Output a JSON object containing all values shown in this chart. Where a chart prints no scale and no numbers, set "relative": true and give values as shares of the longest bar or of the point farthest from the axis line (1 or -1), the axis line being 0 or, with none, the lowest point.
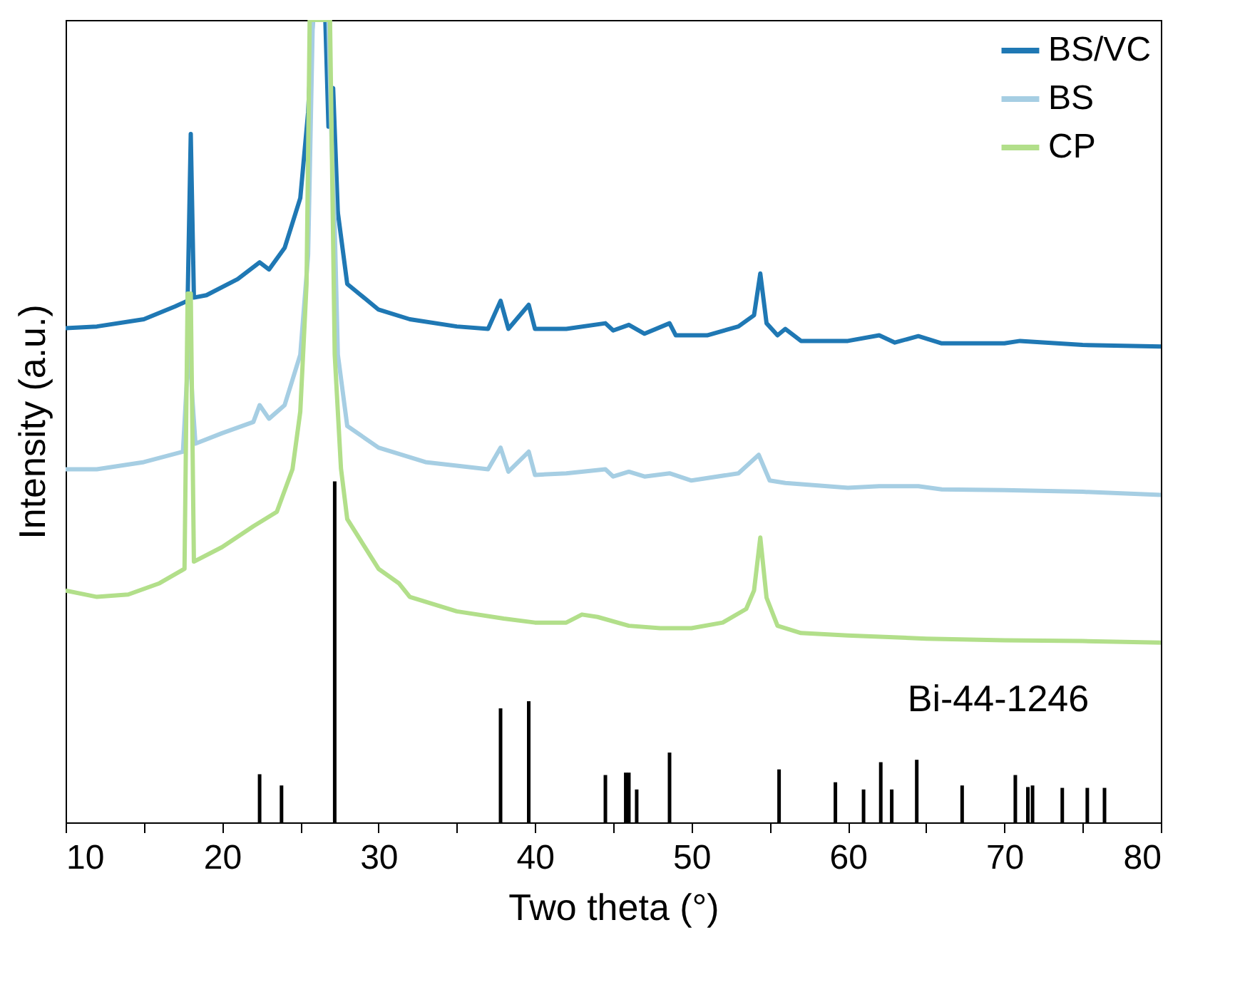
{
  "chart_data": {
    "type": "line",
    "relative": true,
    "xlabel": "Two theta (°)",
    "ylabel": "Intensity (a.u.)",
    "xlim": [
      10,
      80
    ],
    "xticks": [
      10,
      {
        "value": 15,
        "label": null
      },
      20,
      {
        "value": 25,
        "label": null
      },
      30,
      {
        "value": 35,
        "label": null
      },
      40,
      {
        "value": 45,
        "label": null
      },
      50,
      {
        "value": 55,
        "label": null
      },
      60,
      {
        "value": 65,
        "label": null
      },
      70,
      {
        "value": 75,
        "label": null
      },
      80
    ],
    "legend": "top right",
    "grid": false,
    "marker": "none",
    "line_style": "solid",
    "annotations": [
      "Bi-44-1246"
    ],
    "series": [
      {
        "name": "BS/VC",
        "color": "#1f78b4",
        "x": [
          10,
          12,
          15,
          17,
          17.8,
          18.0,
          18.2,
          19,
          21,
          22.4,
          23,
          24,
          25,
          25.5,
          25.8,
          26.3,
          26.6,
          26.8,
          27.0,
          27.1,
          27.4,
          28,
          30,
          32,
          35,
          37,
          37.8,
          38.3,
          39.6,
          40,
          42,
          44.5,
          45,
          46,
          47,
          48.6,
          49,
          51,
          53,
          54,
          54.4,
          54.8,
          55.5,
          56,
          57,
          60,
          62,
          63,
          64.5,
          66,
          70,
          71,
          75,
          80
        ],
        "values": [
          0.616,
          0.618,
          0.627,
          0.643,
          0.65,
          0.858,
          0.654,
          0.657,
          0.677,
          0.698,
          0.689,
          0.716,
          0.778,
          0.885,
          1,
          1,
          1,
          0.867,
          0.911,
          0.915,
          0.76,
          0.671,
          0.639,
          0.627,
          0.618,
          0.615,
          0.65,
          0.615,
          0.645,
          0.615,
          0.615,
          0.622,
          0.613,
          0.62,
          0.609,
          0.622,
          0.607,
          0.607,
          0.618,
          0.632,
          0.684,
          0.622,
          0.607,
          0.615,
          0.6,
          0.6,
          0.607,
          0.598,
          0.606,
          0.597,
          0.597,
          0.6,
          0.595,
          0.593
        ]
      },
      {
        "name": "BS",
        "color": "#a6cee3",
        "x": [
          10,
          12,
          15,
          17.5,
          17.9,
          18.1,
          18.3,
          20,
          22,
          22.4,
          23,
          24,
          25,
          25.5,
          25.8,
          26.8,
          27.0,
          27.2,
          27.4,
          28,
          30,
          33,
          37,
          37.8,
          38.3,
          39.6,
          40,
          42,
          44.5,
          45,
          46,
          47,
          48.6,
          50,
          53,
          54.3,
          55,
          56,
          60,
          62,
          64.5,
          66,
          70,
          75,
          80
        ],
        "values": [
          0.44,
          0.44,
          0.449,
          0.462,
          0.604,
          0.529,
          0.472,
          0.485,
          0.499,
          0.52,
          0.503,
          0.52,
          0.583,
          0.707,
          1,
          1,
          0.849,
          0.742,
          0.583,
          0.494,
          0.467,
          0.449,
          0.44,
          0.467,
          0.437,
          0.462,
          0.433,
          0.435,
          0.44,
          0.431,
          0.437,
          0.431,
          0.435,
          0.426,
          0.435,
          0.458,
          0.426,
          0.423,
          0.417,
          0.419,
          0.419,
          0.415,
          0.414,
          0.412,
          0.408
        ]
      },
      {
        "name": "CP",
        "color": "#b2df8a",
        "x": [
          10,
          12,
          14,
          16,
          17.6,
          17.8,
          18.0,
          18.2,
          20,
          22,
          23.5,
          24.5,
          25,
          25.4,
          25.6,
          26.9,
          27.2,
          27.6,
          28,
          30,
          31.3,
          32,
          35,
          38,
          40,
          42,
          43,
          44,
          46,
          48,
          50,
          52,
          53.5,
          54,
          54.4,
          54.8,
          55.5,
          57,
          60,
          65,
          70,
          75,
          80
        ],
        "values": [
          0.289,
          0.281,
          0.284,
          0.298,
          0.316,
          0.659,
          0.659,
          0.325,
          0.343,
          0.369,
          0.387,
          0.44,
          0.512,
          0.671,
          1,
          1,
          0.583,
          0.441,
          0.378,
          0.316,
          0.298,
          0.281,
          0.263,
          0.254,
          0.249,
          0.249,
          0.259,
          0.256,
          0.245,
          0.242,
          0.242,
          0.249,
          0.266,
          0.289,
          0.355,
          0.28,
          0.245,
          0.236,
          0.233,
          0.229,
          0.227,
          0.226,
          0.224
        ]
      },
      {
        "type": "bar",
        "color": "#000000",
        "x": [
          22.4,
          23.8,
          27.2,
          37.8,
          39.6,
          44.5,
          45.8,
          46.0,
          46.5,
          48.6,
          55.6,
          59.2,
          61.0,
          62.1,
          62.8,
          64.4,
          67.3,
          70.7,
          71.5,
          71.8,
          73.7,
          75.3,
          76.4
        ],
        "values": [
          0.06,
          0.046,
          0.425,
          0.142,
          0.151,
          0.059,
          0.062,
          0.062,
          0.041,
          0.087,
          0.066,
          0.05,
          0.041,
          0.075,
          0.041,
          0.078,
          0.046,
          0.059,
          0.044,
          0.046,
          0.043,
          0.043,
          0.043
        ]
      }
    ]
  }
}
